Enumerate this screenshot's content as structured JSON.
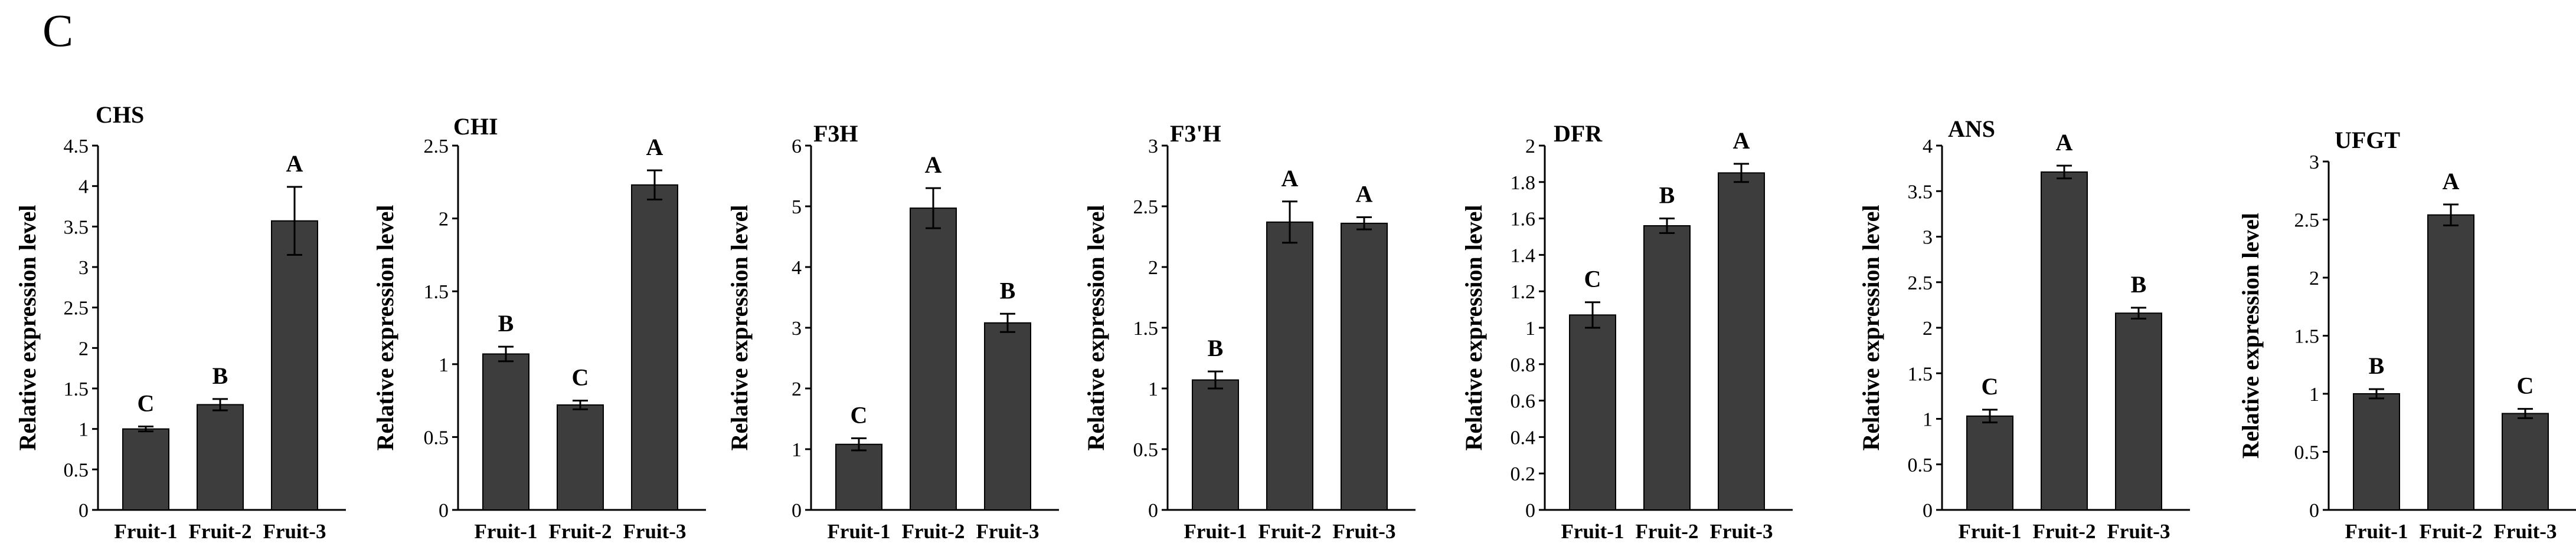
{
  "panel_label": "C",
  "chart_data": [
    {
      "type": "bar",
      "title": "CHS",
      "ylabel": "Relative expression level",
      "categories": [
        "Fruit-1",
        "Fruit-2",
        "Fruit-3"
      ],
      "values": [
        1.0,
        1.3,
        3.57
      ],
      "errors": [
        0.03,
        0.07,
        0.42
      ],
      "significance": [
        "C",
        "B",
        "A"
      ],
      "ylim": [
        0,
        4.5
      ],
      "yticks": [
        "0",
        "0.5",
        "1",
        "1.5",
        "2",
        "2.5",
        "3",
        "3.5",
        "4",
        "4.5"
      ]
    },
    {
      "type": "bar",
      "title": "CHI",
      "ylabel": "Relative expression level",
      "categories": [
        "Fruit-1",
        "Fruit-2",
        "Fruit-3"
      ],
      "values": [
        1.07,
        0.72,
        2.23
      ],
      "errors": [
        0.05,
        0.03,
        0.1
      ],
      "significance": [
        "B",
        "C",
        "A"
      ],
      "ylim": [
        0,
        2.5
      ],
      "yticks": [
        "0",
        "0.5",
        "1",
        "1.5",
        "2",
        "2.5"
      ]
    },
    {
      "type": "bar",
      "title": "F3H",
      "ylabel": "Relative expression level",
      "categories": [
        "Fruit-1",
        "Fruit-2",
        "Fruit-3"
      ],
      "values": [
        1.08,
        4.97,
        3.08
      ],
      "errors": [
        0.1,
        0.33,
        0.15
      ],
      "significance": [
        "C",
        "A",
        "B"
      ],
      "ylim": [
        0,
        6
      ],
      "yticks": [
        "0",
        "1",
        "2",
        "3",
        "4",
        "5",
        "6"
      ]
    },
    {
      "type": "bar",
      "title": "F3'H",
      "ylabel": "Relative expression level",
      "categories": [
        "Fruit-1",
        "Fruit-2",
        "Fruit-3"
      ],
      "values": [
        1.07,
        2.37,
        2.36
      ],
      "errors": [
        0.07,
        0.17,
        0.05
      ],
      "significance": [
        "B",
        "A",
        "A"
      ],
      "ylim": [
        0,
        3
      ],
      "yticks": [
        "0",
        "0.5",
        "1",
        "1.5",
        "2",
        "2.5",
        "3"
      ]
    },
    {
      "type": "bar",
      "title": "DFR",
      "ylabel": "Relative expression level",
      "categories": [
        "Fruit-1",
        "Fruit-2",
        "Fruit-3"
      ],
      "values": [
        1.07,
        1.56,
        1.85
      ],
      "errors": [
        0.07,
        0.04,
        0.05
      ],
      "significance": [
        "C",
        "B",
        "A"
      ],
      "ylim": [
        0,
        2
      ],
      "yticks": [
        "0",
        "0.2",
        "0.4",
        "0.6",
        "0.8",
        "1",
        "1.2",
        "1.4",
        "1.6",
        "1.8",
        "2"
      ]
    },
    {
      "type": "bar",
      "title": "ANS",
      "ylabel": "Relative expression level",
      "categories": [
        "Fruit-1",
        "Fruit-2",
        "Fruit-3"
      ],
      "values": [
        1.03,
        3.71,
        2.16
      ],
      "errors": [
        0.07,
        0.07,
        0.06
      ],
      "significance": [
        "C",
        "A",
        "B"
      ],
      "ylim": [
        0,
        4
      ],
      "yticks": [
        "0",
        "0.5",
        "1",
        "1.5",
        "2",
        "2.5",
        "3",
        "3.5",
        "4"
      ]
    },
    {
      "type": "bar",
      "title": "UFGT",
      "ylabel": "Relative expression level",
      "categories": [
        "Fruit-1",
        "Fruit-2",
        "Fruit-3"
      ],
      "values": [
        1.0,
        2.54,
        0.83
      ],
      "errors": [
        0.04,
        0.09,
        0.04
      ],
      "significance": [
        "B",
        "A",
        "C"
      ],
      "ylim": [
        0,
        3
      ],
      "yticks": [
        "0",
        "0.5",
        "1",
        "1.5",
        "2",
        "2.5",
        "3"
      ]
    }
  ]
}
